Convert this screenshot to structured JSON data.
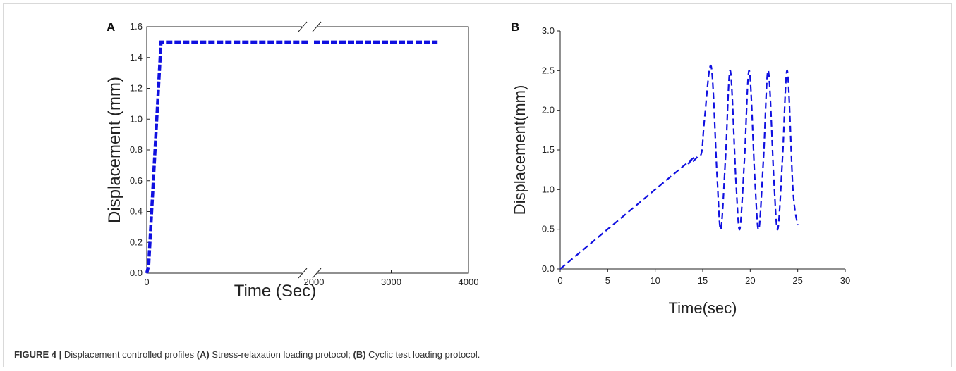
{
  "caption": {
    "figure_label": "FIGURE 4 |",
    "text_1": " Displacement controlled profiles ",
    "part_a": "(A)",
    "text_2": " Stress-relaxation loading protocol; ",
    "part_b": "(B)",
    "text_3": " Cyclic test loading protocol."
  },
  "chart_data": [
    {
      "panel": "A",
      "type": "line",
      "xlabel": "Time (Sec)",
      "ylabel": "Displacement (mm)",
      "x_axis_break": true,
      "x_segment_1": {
        "range": [
          0,
          1700
        ],
        "ticks": [
          0
        ]
      },
      "x_segment_2": {
        "range": [
          2000,
          4000
        ],
        "ticks": [
          2000,
          3000,
          4000
        ]
      },
      "ylim": [
        0.0,
        1.6
      ],
      "y_ticks": [
        "0.0",
        "0.2",
        "0.4",
        "0.6",
        "0.8",
        "1.0",
        "1.2",
        "1.4",
        "1.6"
      ],
      "x_tick_labels": [
        "0",
        "2000",
        "3000",
        "4000"
      ],
      "line_color": "#1010e0",
      "line_style": "dashed",
      "series": [
        {
          "x": [
            0,
            20,
            150,
            400,
            800,
            1200,
            1500,
            1700,
            2000,
            2500,
            3000,
            3600
          ],
          "y": [
            0.0,
            0.05,
            1.5,
            1.5,
            1.5,
            1.5,
            1.5,
            1.5,
            1.5,
            1.5,
            1.5,
            1.5
          ]
        }
      ],
      "grid": false
    },
    {
      "panel": "B",
      "type": "line",
      "xlabel": "Time(sec)",
      "ylabel": "Displacement(mm)",
      "xlim": [
        0,
        30
      ],
      "ylim": [
        0.0,
        3.0
      ],
      "x_tick_labels": [
        "0",
        "5",
        "10",
        "15",
        "20",
        "25",
        "30"
      ],
      "y_tick_labels": [
        "0.0",
        "0.5",
        "1.0",
        "1.5",
        "2.0",
        "2.5",
        "3.0"
      ],
      "line_color": "#1010e0",
      "line_style": "dashed",
      "series": [
        {
          "x": [
            0,
            13,
            13.5,
            14,
            14.5,
            14.9,
            15.2,
            15.9,
            16.5,
            16.9,
            17.4,
            17.9,
            18.5,
            18.9,
            19.4,
            19.9,
            20.5,
            20.9,
            21.4,
            21.9,
            22.5,
            22.9,
            23.4,
            23.9,
            24.5,
            25.0
          ],
          "y": [
            0.0,
            1.3,
            1.33,
            1.36,
            1.42,
            1.48,
            1.9,
            2.55,
            1.2,
            0.5,
            1.4,
            2.5,
            1.1,
            0.5,
            1.4,
            2.5,
            1.1,
            0.5,
            1.4,
            2.5,
            1.1,
            0.5,
            1.4,
            2.5,
            1.0,
            0.55
          ]
        }
      ],
      "grid": false
    }
  ]
}
